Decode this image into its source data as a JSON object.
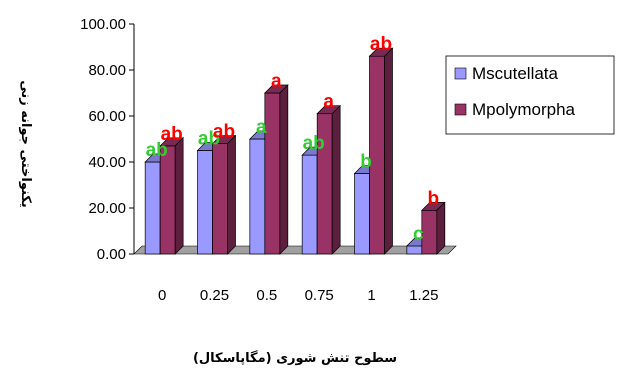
{
  "chart_data": {
    "type": "bar",
    "title": "",
    "xlabel": "سطوح تنش شوری (مگاپاسکال)",
    "ylabel": "یکنواختی جوانه زنی",
    "categories": [
      "0",
      "0.25",
      "0.5",
      "0.75",
      "1",
      "1.25"
    ],
    "ylim": [
      0,
      100
    ],
    "yticks": [
      "0.00",
      "20.00",
      "40.00",
      "60.00",
      "80.00",
      "100.00"
    ],
    "grid": false,
    "legend_position": "right",
    "series": [
      {
        "name": "Mscutellata",
        "color": "#9999ff",
        "values": [
          40,
          45,
          50,
          43,
          35,
          3.5
        ],
        "labels": [
          "ab",
          "ab",
          "a",
          "ab",
          "b",
          "c"
        ],
        "label_color": "#33cc33"
      },
      {
        "name": "Mpolymorpha",
        "color": "#993366",
        "values": [
          47,
          48,
          70,
          61,
          86,
          19
        ],
        "labels": [
          "ab",
          "ab",
          "a",
          "a",
          "ab",
          "b"
        ],
        "label_color": "#ff0000"
      }
    ]
  }
}
